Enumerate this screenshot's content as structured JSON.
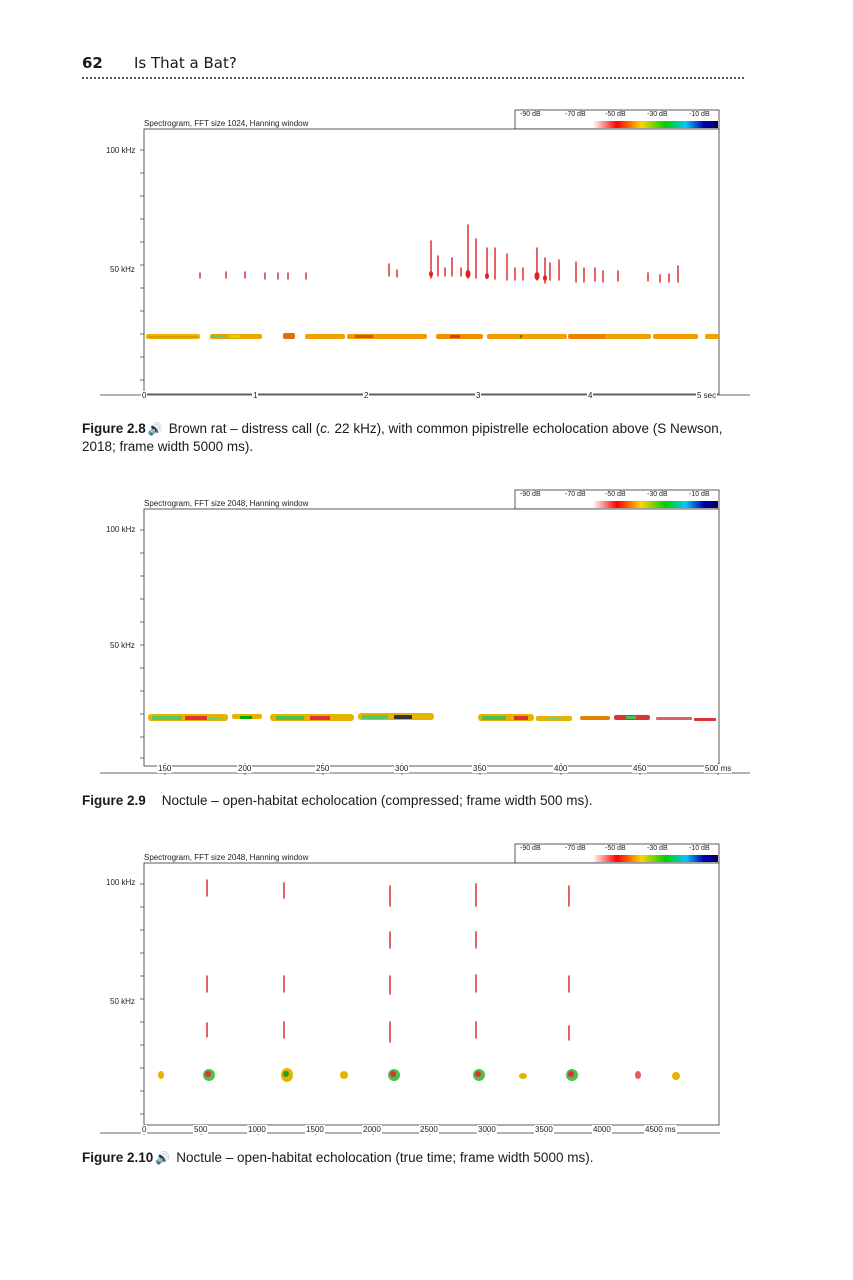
{
  "header": {
    "page_number": "62",
    "running_title": "Is That a Bat?"
  },
  "figures": [
    {
      "plot_title": "Spectrogram, FFT size 1024, Hanning window",
      "scale_labels": [
        "-90 dB",
        "-70 dB",
        "-50 dB",
        "-30 dB",
        "-10 dB"
      ],
      "y_labels": [
        "100 kHz",
        "50 kHz"
      ],
      "x_tick_labels": [
        "0",
        "1",
        "2",
        "3",
        "4",
        "5 sec"
      ],
      "caption": {
        "label": "Figure 2.8",
        "icon": "speaker-icon",
        "text_before": "Brown rat – distress call (",
        "italic": "c.",
        "text_after": " 22 kHz), with common pipistrelle echolocation above (S Newson, 2018; frame width 5000 ms)."
      }
    },
    {
      "plot_title": "Spectrogram, FFT size 2048, Hanning window",
      "scale_labels": [
        "-90 dB",
        "-70 dB",
        "-50 dB",
        "-30 dB",
        "-10 dB"
      ],
      "y_labels": [
        "100 kHz",
        "50 kHz"
      ],
      "x_tick_labels": [
        "150",
        "200",
        "250",
        "300",
        "350",
        "400",
        "450",
        "500 ms"
      ],
      "caption": {
        "label": "Figure 2.9",
        "text": "Noctule – open-habitat echolocation (compressed; frame width 500 ms)."
      }
    },
    {
      "plot_title": "Spectrogram, FFT size 2048, Hanning window",
      "scale_labels": [
        "-90 dB",
        "-70 dB",
        "-50 dB",
        "-30 dB",
        "-10 dB"
      ],
      "y_labels": [
        "100 kHz",
        "50 kHz"
      ],
      "x_tick_labels": [
        "0",
        "500",
        "1000",
        "1500",
        "2000",
        "2500",
        "3000",
        "3500",
        "4000",
        "4500 ms"
      ],
      "caption": {
        "label": "Figure 2.10",
        "icon": "speaker-icon",
        "text": "Noctule – open-habitat echolocation (true time; frame width 5000 ms)."
      }
    }
  ],
  "colors": {
    "text": "#1a1a1a",
    "scale": [
      "#ffffff",
      "#ff0000",
      "#ffd400",
      "#00d000",
      "#00c8ff",
      "#0000aa",
      "#000060"
    ]
  }
}
